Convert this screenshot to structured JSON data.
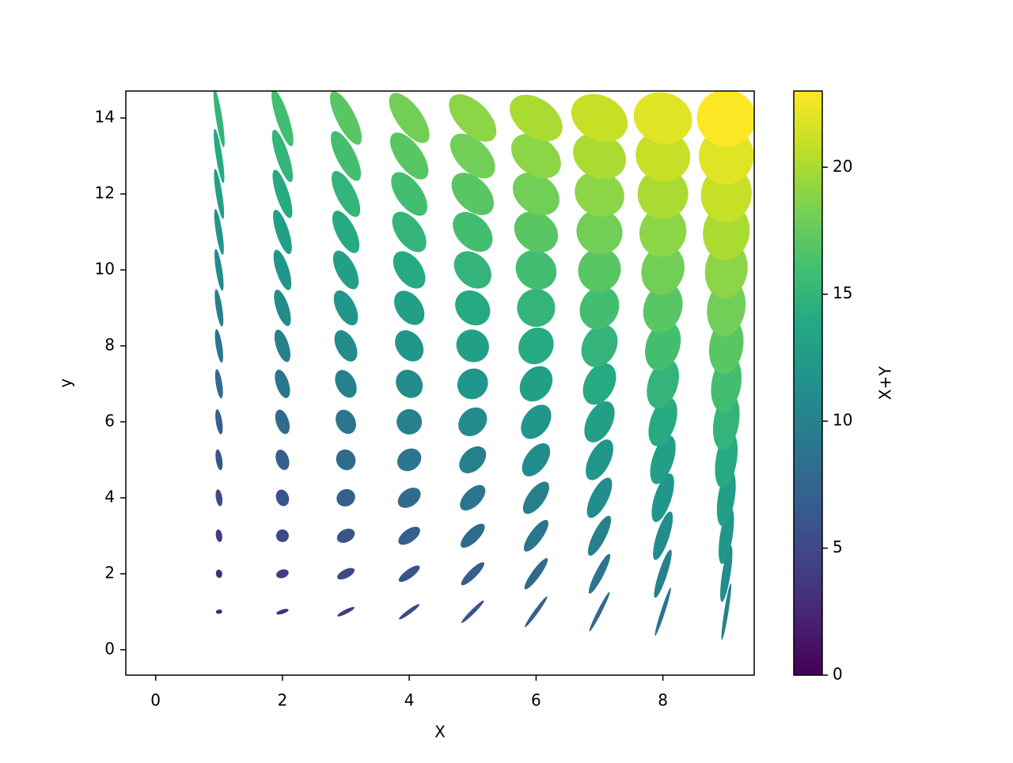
{
  "chart_data": {
    "type": "ellipses",
    "xlabel": "X",
    "ylabel": "y",
    "columns": [
      1,
      2,
      3,
      4,
      5,
      6,
      7,
      8,
      9
    ],
    "widths": [
      0.1,
      0.2,
      0.3,
      0.4,
      0.5,
      0.6,
      0.7,
      0.8,
      0.9
    ],
    "angles": [
      9,
      18,
      27,
      36,
      45,
      54,
      63,
      72,
      81
    ],
    "rows": [
      1,
      2,
      3,
      4,
      5,
      6,
      7,
      8,
      9,
      10,
      11,
      12,
      13,
      14
    ],
    "heights": [
      0.067,
      0.133,
      0.2,
      0.267,
      0.333,
      0.4,
      0.467,
      0.533,
      0.6,
      0.667,
      0.733,
      0.8,
      0.867,
      0.933
    ],
    "values": [
      [
        2,
        3,
        4,
        5,
        6,
        7,
        8,
        9,
        10
      ],
      [
        3,
        4,
        5,
        6,
        7,
        8,
        9,
        10,
        11
      ],
      [
        4,
        5,
        6,
        7,
        8,
        9,
        10,
        11,
        12
      ],
      [
        5,
        6,
        7,
        8,
        9,
        10,
        11,
        12,
        13
      ],
      [
        6,
        7,
        8,
        9,
        10,
        11,
        12,
        13,
        14
      ],
      [
        7,
        8,
        9,
        10,
        11,
        12,
        13,
        14,
        15
      ],
      [
        8,
        9,
        10,
        11,
        12,
        13,
        14,
        15,
        16
      ],
      [
        9,
        10,
        11,
        12,
        13,
        14,
        15,
        16,
        17
      ],
      [
        10,
        11,
        12,
        13,
        14,
        15,
        16,
        17,
        18
      ],
      [
        11,
        12,
        13,
        14,
        15,
        16,
        17,
        18,
        19
      ],
      [
        12,
        13,
        14,
        15,
        16,
        17,
        18,
        19,
        20
      ],
      [
        13,
        14,
        15,
        16,
        17,
        18,
        19,
        20,
        21
      ],
      [
        14,
        15,
        16,
        17,
        18,
        19,
        20,
        21,
        22
      ],
      [
        15,
        16,
        17,
        18,
        19,
        20,
        21,
        22,
        23
      ]
    ],
    "xlim": [
      -0.47,
      9.44
    ],
    "xticks": [
      0,
      2,
      4,
      6,
      8
    ],
    "ylim": [
      -0.67,
      14.71
    ],
    "yticks": [
      0,
      2,
      4,
      6,
      8,
      10,
      12,
      14
    ],
    "colormap": "viridis",
    "colorbar": {
      "label": "X+Y",
      "lim": [
        0,
        23
      ],
      "ticks": [
        0,
        5,
        10,
        15,
        20
      ]
    }
  }
}
